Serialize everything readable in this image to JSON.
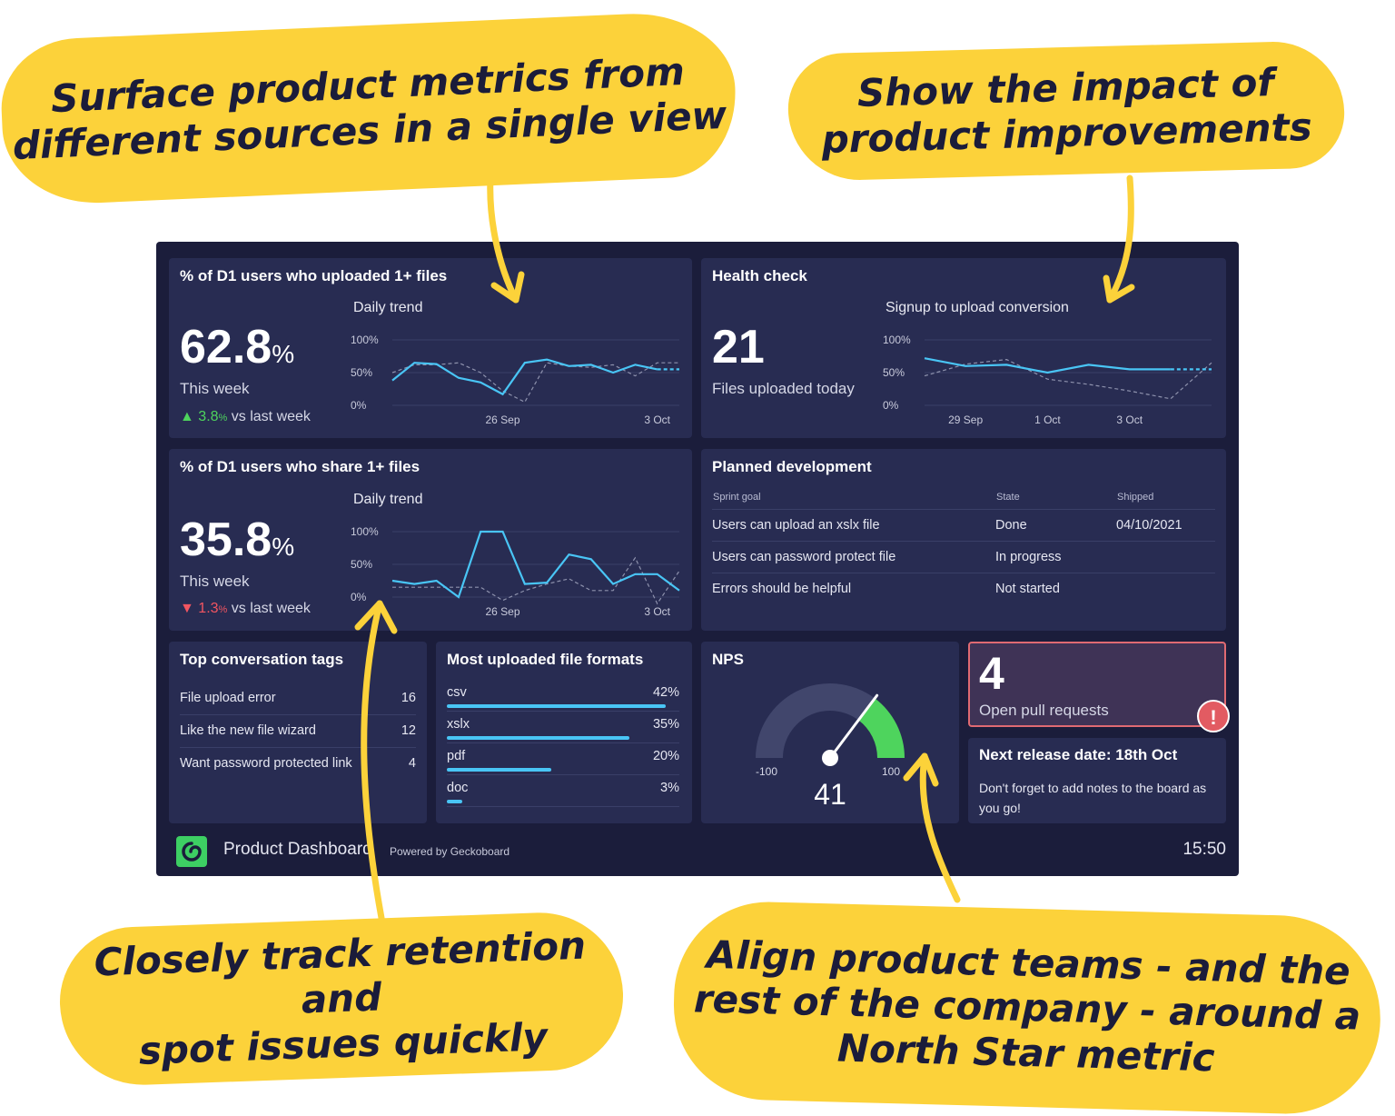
{
  "callouts": {
    "top_left": [
      "Surface product metrics from",
      "different sources in a single view"
    ],
    "top_right": [
      "Show the impact of",
      "product improvements"
    ],
    "bottom_left": [
      "Closely track retention and",
      "spot issues quickly"
    ],
    "bottom_right": [
      "Align product teams - and the",
      "rest of the company - around a",
      "North Star metric"
    ]
  },
  "tiles": {
    "upload": {
      "title": "% of D1 users who uploaded 1+ files",
      "value": "62.8",
      "unit": "%",
      "period": "This week",
      "change": "3.8",
      "change_unit": "%",
      "change_suffix": "vs last week",
      "direction": "up",
      "trend_title": "Daily trend",
      "y_ticks": [
        "100%",
        "50%",
        "0%"
      ],
      "x_ticks": [
        "26 Sep",
        "3 Oct"
      ]
    },
    "share": {
      "title": "% of D1 users who share 1+ files",
      "value": "35.8",
      "unit": "%",
      "period": "This week",
      "change": "1.3",
      "change_unit": "%",
      "change_suffix": "vs last week",
      "direction": "down",
      "trend_title": "Daily trend",
      "y_ticks": [
        "100%",
        "50%",
        "0%"
      ],
      "x_ticks": [
        "26 Sep",
        "3 Oct"
      ]
    },
    "health": {
      "title": "Health check",
      "value": "21",
      "caption": "Files uploaded today",
      "trend_title": "Signup to upload conversion",
      "y_ticks": [
        "100%",
        "50%",
        "0%"
      ],
      "x_ticks": [
        "29 Sep",
        "1 Oct",
        "3 Oct"
      ]
    },
    "planned": {
      "title": "Planned development",
      "headers": [
        "Sprint goal",
        "State",
        "Shipped"
      ],
      "rows": [
        [
          "Users can upload an xslx file",
          "Done",
          "04/10/2021"
        ],
        [
          "Users can password protect file",
          "In progress",
          ""
        ],
        [
          "Errors should be helpful",
          "Not started",
          ""
        ]
      ]
    },
    "tags": {
      "title": "Top conversation tags",
      "items": [
        {
          "label": "File upload error",
          "count": "16"
        },
        {
          "label": "Like the new file wizard",
          "count": "12"
        },
        {
          "label": "Want password protected link",
          "count": "4"
        }
      ]
    },
    "formats": {
      "title": "Most uploaded file formats",
      "items": [
        {
          "label": "csv",
          "pct": "42%",
          "value": 42
        },
        {
          "label": "xslx",
          "pct": "35%",
          "value": 35
        },
        {
          "label": "pdf",
          "pct": "20%",
          "value": 20
        },
        {
          "label": "doc",
          "pct": "3%",
          "value": 3
        }
      ]
    },
    "nps": {
      "title": "NPS",
      "value": "41",
      "min": "-100",
      "max": "100",
      "gauge_value": 41
    },
    "pulls": {
      "value": "4",
      "caption": "Open pull requests",
      "alert": "!"
    },
    "release": {
      "title": "Next release date: 18th Oct",
      "note": "Don't forget to add notes to the board as you go!"
    }
  },
  "footer": {
    "name": "Product Dashboard",
    "powered": "Powered by Geckoboard",
    "time": "15:50"
  },
  "colors": {
    "callout": "#fcd23a",
    "dashboard_bg": "#1b1d3b",
    "tile_bg": "#282c52",
    "accent_line": "#49c5f5",
    "positive": "#4ed45d",
    "negative": "#f25561"
  },
  "chart_data": [
    {
      "type": "line",
      "name": "upload-daily-trend",
      "title": "Daily trend",
      "ylim": [
        0,
        100
      ],
      "x": [
        "21 Sep",
        "22 Sep",
        "23 Sep",
        "24 Sep",
        "25 Sep",
        "26 Sep",
        "27 Sep",
        "28 Sep",
        "29 Sep",
        "30 Sep",
        "1 Oct",
        "2 Oct",
        "3 Oct",
        "4 Oct"
      ],
      "x_tick_labels": [
        "26 Sep",
        "3 Oct"
      ],
      "series": [
        {
          "values": [
            38,
            65,
            63,
            42,
            35,
            17,
            65,
            70,
            60,
            62,
            50,
            62,
            55,
            55
          ],
          "style": "solid",
          "projected_from_index": 12
        },
        {
          "values": [
            50,
            62,
            62,
            65,
            50,
            22,
            5,
            65,
            60,
            58,
            62,
            45,
            65,
            65
          ],
          "style": "dashed"
        }
      ]
    },
    {
      "type": "line",
      "name": "share-daily-trend",
      "title": "Daily trend",
      "ylim": [
        0,
        100
      ],
      "x": [
        "21 Sep",
        "22 Sep",
        "23 Sep",
        "24 Sep",
        "25 Sep",
        "26 Sep",
        "27 Sep",
        "28 Sep",
        "29 Sep",
        "30 Sep",
        "1 Oct",
        "2 Oct",
        "3 Oct",
        "4 Oct"
      ],
      "x_tick_labels": [
        "26 Sep",
        "3 Oct"
      ],
      "series": [
        {
          "values": [
            25,
            20,
            25,
            0,
            100,
            100,
            20,
            22,
            65,
            58,
            20,
            35,
            35,
            10
          ],
          "style": "solid"
        },
        {
          "values": [
            15,
            15,
            15,
            15,
            15,
            -5,
            10,
            20,
            28,
            10,
            10,
            60,
            -10,
            40
          ],
          "style": "dashed"
        }
      ]
    },
    {
      "type": "line",
      "name": "signup-to-upload-conversion",
      "title": "Signup to upload conversion",
      "ylim": [
        0,
        100
      ],
      "x": [
        "27 Sep",
        "28 Sep",
        "29 Sep",
        "30 Sep",
        "1 Oct",
        "2 Oct",
        "3 Oct",
        "4 Oct"
      ],
      "x_tick_labels": [
        "29 Sep",
        "1 Oct",
        "3 Oct"
      ],
      "series": [
        {
          "values": [
            72,
            60,
            62,
            50,
            62,
            55,
            55,
            55
          ],
          "style": "solid",
          "projected_from_index": 6
        },
        {
          "values": [
            45,
            63,
            70,
            40,
            32,
            22,
            10,
            65
          ],
          "style": "dashed"
        }
      ]
    }
  ]
}
